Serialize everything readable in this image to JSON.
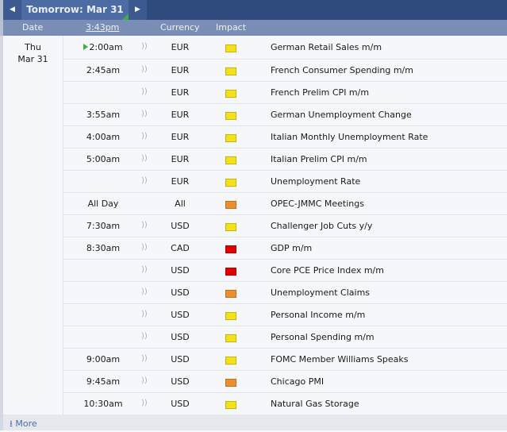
{
  "header": {
    "tab_label": "Tomorrow: Mar 31",
    "prev_icon": "caret-left-icon",
    "next_icon": "caret-right-icon"
  },
  "columns": {
    "date": "Date",
    "time": "3:43pm",
    "currency": "Currency",
    "impact": "Impact"
  },
  "day": {
    "weekday": "Thu",
    "date": "Mar 31"
  },
  "impact_colors": {
    "low": "#f5e11a",
    "medium": "#ef8c2b",
    "high": "#e00000"
  },
  "rows": [
    {
      "time": "2:00am",
      "currency": "EUR",
      "impact": "low",
      "event": "German Retail Sales m/m",
      "next": true
    },
    {
      "time": "2:45am",
      "currency": "EUR",
      "impact": "low",
      "event": "French Consumer Spending m/m"
    },
    {
      "time": "",
      "currency": "EUR",
      "impact": "low",
      "event": "French Prelim CPI m/m"
    },
    {
      "time": "3:55am",
      "currency": "EUR",
      "impact": "low",
      "event": "German Unemployment Change"
    },
    {
      "time": "4:00am",
      "currency": "EUR",
      "impact": "low",
      "event": "Italian Monthly Unemployment Rate"
    },
    {
      "time": "5:00am",
      "currency": "EUR",
      "impact": "low",
      "event": "Italian Prelim CPI m/m"
    },
    {
      "time": "",
      "currency": "EUR",
      "impact": "low",
      "event": "Unemployment Rate"
    },
    {
      "time": "All Day",
      "currency": "All",
      "impact": "medium",
      "event": "OPEC-JMMC Meetings",
      "nosound": true
    },
    {
      "time": "7:30am",
      "currency": "USD",
      "impact": "low",
      "event": "Challenger Job Cuts y/y"
    },
    {
      "time": "8:30am",
      "currency": "CAD",
      "impact": "high",
      "event": "GDP m/m"
    },
    {
      "time": "",
      "currency": "USD",
      "impact": "high",
      "event": "Core PCE Price Index m/m"
    },
    {
      "time": "",
      "currency": "USD",
      "impact": "medium",
      "event": "Unemployment Claims"
    },
    {
      "time": "",
      "currency": "USD",
      "impact": "low",
      "event": "Personal Income m/m"
    },
    {
      "time": "",
      "currency": "USD",
      "impact": "low",
      "event": "Personal Spending m/m"
    },
    {
      "time": "9:00am",
      "currency": "USD",
      "impact": "low",
      "event": "FOMC Member Williams Speaks"
    },
    {
      "time": "9:45am",
      "currency": "USD",
      "impact": "medium",
      "event": "Chicago PMI"
    },
    {
      "time": "10:30am",
      "currency": "USD",
      "impact": "low",
      "event": "Natural Gas Storage"
    }
  ],
  "footer": {
    "more_label": "More",
    "icon": "download-arrow-icon"
  }
}
